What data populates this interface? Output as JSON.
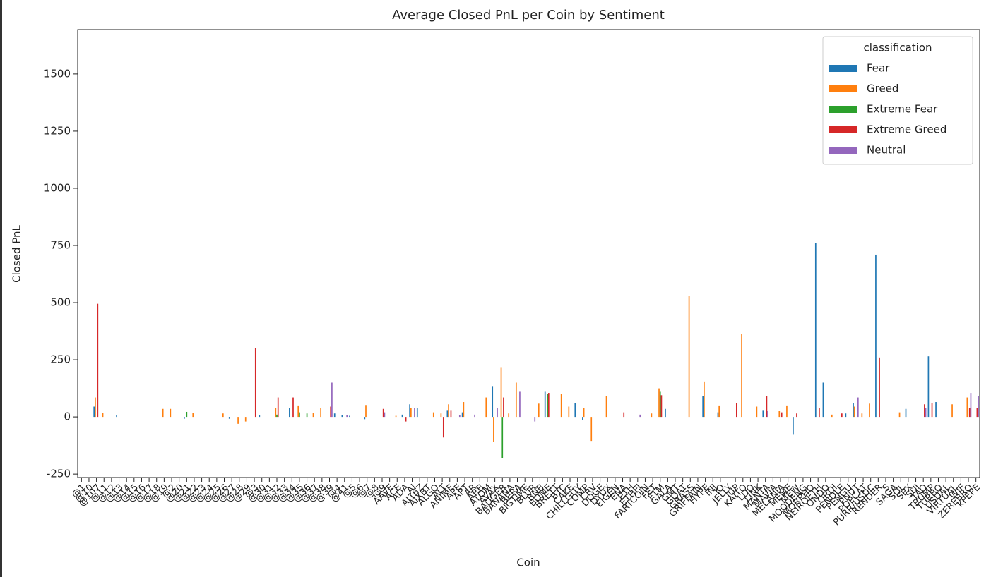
{
  "chart_data": {
    "type": "bar",
    "title": "Average Closed PnL per Coin by Sentiment",
    "xlabel": "Coin",
    "ylabel": "Closed PnL",
    "legend_title": "classification",
    "legend_loc": "upper right",
    "ylim": [
      -265,
      1694
    ],
    "yticks": [
      -250,
      0,
      250,
      500,
      750,
      1000,
      1250,
      1500
    ],
    "categories": [
      "@1",
      "@10",
      "@107",
      "@11",
      "@12",
      "@13",
      "@14",
      "@15",
      "@16",
      "@17",
      "@18",
      "@19",
      "@2",
      "@20",
      "@21",
      "@22",
      "@23",
      "@24",
      "@25",
      "@26",
      "@27",
      "@28",
      "@29",
      "@3",
      "@30",
      "@31",
      "@32",
      "@33",
      "@34",
      "@35",
      "@36",
      "@37",
      "@38",
      "@39",
      "@4",
      "@41",
      "@5",
      "@6",
      "@7",
      "@8",
      "@9",
      "AAVE",
      "ACE",
      "ADA",
      "AI",
      "AI16Z",
      "AIXBT",
      "ALGO",
      "ALT",
      "ANIME",
      "APE",
      "APT",
      "AR",
      "ARB",
      "ATOM",
      "AVAX",
      "BADGER",
      "BANANA",
      "BERA",
      "BIGTIME",
      "BLUR",
      "BNB",
      "BOME",
      "BRETT",
      "BTC",
      "CAKE",
      "CHILLGUY",
      "COMP",
      "CRV",
      "DOGE",
      "DYDX",
      "EIGEN",
      "ENA",
      "ETH",
      "ETHFI",
      "FARTCOIN",
      "FET",
      "FTM",
      "GALA",
      "GMT",
      "GOAT",
      "GRASS",
      "GRIFFAIN",
      "HYPE",
      "INJ",
      "IO",
      "JELLY",
      "JUP",
      "KAITO",
      "LDO",
      "LINK",
      "MANTA",
      "MAVIA",
      "MELANIA",
      "MEME",
      "MEW",
      "MOODENG",
      "MORPHO",
      "NEIROETH",
      "ONDO",
      "ORDI",
      "PENDLE",
      "PENGU",
      "PNUT",
      "POPCAT",
      "PURR/USDC",
      "RENDER",
      "S",
      "SAGA",
      "SOL",
      "SPX",
      "SUI",
      "TAO",
      "TRUMP",
      "TURBO",
      "USUAL",
      "VIRTUAL",
      "WIF",
      "ZEREBRO",
      "kPEPE"
    ],
    "series": [
      {
        "name": "Fear",
        "color": "#1f77b4",
        "values": [
          null,
          null,
          45,
          null,
          null,
          8,
          null,
          null,
          null,
          null,
          null,
          null,
          null,
          null,
          -8,
          null,
          null,
          null,
          null,
          null,
          -8,
          null,
          null,
          null,
          8,
          null,
          null,
          null,
          40,
          null,
          null,
          null,
          null,
          null,
          15,
          8,
          5,
          null,
          -10,
          null,
          null,
          null,
          null,
          10,
          55,
          40,
          null,
          null,
          null,
          30,
          null,
          20,
          null,
          null,
          null,
          135,
          null,
          null,
          null,
          null,
          null,
          null,
          110,
          null,
          null,
          null,
          60,
          -15,
          null,
          null,
          null,
          null,
          null,
          null,
          null,
          null,
          null,
          null,
          35,
          null,
          null,
          null,
          null,
          90,
          null,
          20,
          null,
          null,
          null,
          null,
          null,
          30,
          null,
          null,
          null,
          -75,
          null,
          null,
          760,
          150,
          null,
          null,
          15,
          60,
          null,
          null,
          710,
          null,
          null,
          null,
          35,
          null,
          null,
          265,
          65,
          null,
          null,
          null,
          null,
          null
        ]
      },
      {
        "name": "Greed",
        "color": "#ff7f0e",
        "values": [
          null,
          null,
          85,
          18,
          null,
          null,
          null,
          null,
          null,
          null,
          null,
          35,
          35,
          null,
          null,
          18,
          null,
          null,
          null,
          15,
          null,
          -30,
          -20,
          null,
          null,
          null,
          40,
          null,
          null,
          50,
          null,
          18,
          38,
          null,
          null,
          null,
          null,
          null,
          52,
          null,
          null,
          null,
          5,
          null,
          40,
          null,
          null,
          20,
          15,
          55,
          null,
          65,
          null,
          null,
          85,
          -110,
          218,
          15,
          150,
          null,
          null,
          58,
          null,
          null,
          100,
          45,
          null,
          40,
          -105,
          null,
          90,
          null,
          null,
          null,
          null,
          null,
          15,
          125,
          null,
          null,
          null,
          530,
          null,
          155,
          null,
          50,
          null,
          null,
          362,
          null,
          45,
          null,
          null,
          25,
          50,
          null,
          null,
          null,
          null,
          null,
          10,
          null,
          null,
          45,
          15,
          58,
          null,
          null,
          null,
          20,
          null,
          null,
          null,
          null,
          null,
          null,
          55,
          null,
          85,
          null
        ]
      },
      {
        "name": "Extreme Fear",
        "color": "#2ca02c",
        "values": [
          null,
          null,
          null,
          null,
          null,
          null,
          null,
          null,
          null,
          null,
          null,
          null,
          null,
          null,
          22,
          null,
          null,
          null,
          null,
          null,
          null,
          null,
          null,
          null,
          null,
          null,
          10,
          null,
          null,
          20,
          15,
          null,
          null,
          null,
          null,
          null,
          null,
          null,
          null,
          null,
          null,
          null,
          null,
          null,
          null,
          null,
          null,
          null,
          null,
          null,
          null,
          null,
          null,
          null,
          null,
          null,
          -180,
          null,
          null,
          null,
          null,
          null,
          100,
          null,
          null,
          null,
          null,
          null,
          null,
          null,
          null,
          null,
          null,
          null,
          null,
          null,
          null,
          110,
          null,
          null,
          null,
          null,
          null,
          null,
          null,
          null,
          null,
          null,
          null,
          null,
          null,
          null,
          null,
          null,
          null,
          null,
          null,
          null,
          null,
          null,
          null,
          null,
          null,
          null,
          null,
          null,
          null,
          null,
          null,
          null,
          null,
          null,
          null,
          null,
          null,
          null,
          null,
          null,
          null,
          null
        ]
      },
      {
        "name": "Extreme Greed",
        "color": "#d62728",
        "values": [
          null,
          null,
          495,
          null,
          null,
          null,
          null,
          null,
          null,
          null,
          null,
          null,
          null,
          null,
          null,
          null,
          null,
          null,
          null,
          null,
          null,
          null,
          null,
          300,
          null,
          null,
          85,
          null,
          85,
          null,
          null,
          null,
          null,
          45,
          null,
          null,
          null,
          null,
          null,
          null,
          35,
          null,
          null,
          -20,
          null,
          null,
          null,
          null,
          -90,
          30,
          null,
          null,
          null,
          null,
          null,
          null,
          85,
          null,
          null,
          null,
          null,
          null,
          105,
          null,
          null,
          null,
          null,
          null,
          null,
          null,
          null,
          null,
          20,
          null,
          null,
          null,
          null,
          95,
          null,
          null,
          null,
          null,
          null,
          null,
          null,
          null,
          null,
          60,
          null,
          null,
          null,
          90,
          null,
          20,
          null,
          15,
          null,
          null,
          40,
          null,
          null,
          15,
          null,
          null,
          null,
          null,
          260,
          null,
          null,
          null,
          null,
          null,
          55,
          60,
          null,
          null,
          null,
          null,
          40,
          40
        ]
      },
      {
        "name": "Neutral",
        "color": "#9467bd",
        "values": [
          null,
          null,
          null,
          null,
          null,
          null,
          null,
          null,
          null,
          null,
          null,
          null,
          null,
          null,
          null,
          null,
          null,
          null,
          null,
          null,
          null,
          null,
          null,
          null,
          null,
          null,
          null,
          null,
          null,
          null,
          null,
          null,
          null,
          150,
          null,
          8,
          null,
          null,
          null,
          null,
          20,
          null,
          null,
          null,
          40,
          null,
          null,
          null,
          null,
          null,
          8,
          null,
          10,
          null,
          null,
          40,
          null,
          null,
          110,
          null,
          -20,
          null,
          null,
          null,
          null,
          null,
          null,
          null,
          null,
          null,
          null,
          null,
          null,
          null,
          10,
          null,
          null,
          null,
          null,
          null,
          null,
          null,
          null,
          null,
          null,
          null,
          null,
          null,
          null,
          null,
          null,
          25,
          null,
          null,
          null,
          null,
          null,
          null,
          null,
          null,
          null,
          null,
          null,
          85,
          null,
          null,
          null,
          null,
          null,
          null,
          null,
          null,
          40,
          null,
          null,
          null,
          null,
          null,
          105,
          90
        ]
      }
    ]
  }
}
